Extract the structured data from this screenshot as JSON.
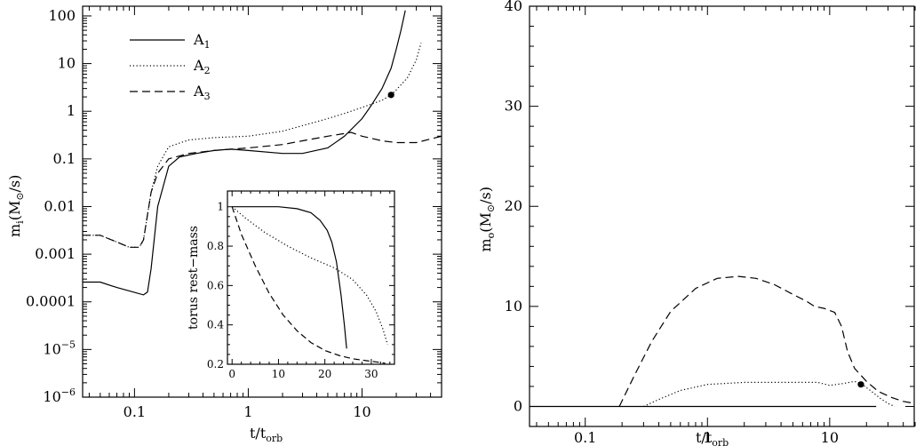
{
  "chart_data": [
    {
      "type": "line",
      "xscale": "log",
      "yscale": "log",
      "xlim": [
        0.035,
        50
      ],
      "ylim": [
        1e-06,
        160
      ],
      "xlabel": "t/t",
      "xlabel_sub": "orb",
      "ylabel": "m",
      "ylabel_sub": "i",
      "ylabel_units": "(M",
      "ylabel_units_sub": "⊙",
      "ylabel_units_tail": "/s)",
      "xticks": [
        {
          "v": 0.1,
          "label": "0.1"
        },
        {
          "v": 1,
          "label": "1"
        },
        {
          "v": 10,
          "label": "10"
        }
      ],
      "yticks": [
        {
          "v": 100,
          "label": "100"
        },
        {
          "v": 10,
          "label": "10"
        },
        {
          "v": 1,
          "label": "1"
        },
        {
          "v": 0.1,
          "label": "0.1"
        },
        {
          "v": 0.01,
          "label": "0.01"
        },
        {
          "v": 0.001,
          "label": "0.001"
        },
        {
          "v": 0.0001,
          "label": "0.0001"
        },
        {
          "v": 1e-05,
          "label": "10",
          "sup": "−5"
        },
        {
          "v": 1e-06,
          "label": "10",
          "sup": "−6"
        }
      ],
      "legend": [
        {
          "name": "A",
          "sub": "1",
          "dash": "solid"
        },
        {
          "name": "A",
          "sub": "2",
          "dash": "dotted"
        },
        {
          "name": "A",
          "sub": "3",
          "dash": "dashed"
        }
      ],
      "series": [
        {
          "name": "A1",
          "dash": "solid",
          "x": [
            0.035,
            0.05,
            0.07,
            0.09,
            0.12,
            0.13,
            0.14,
            0.16,
            0.2,
            0.25,
            0.35,
            0.5,
            0.7,
            1,
            2,
            3,
            5,
            7,
            10,
            12,
            15,
            18,
            20,
            22,
            24
          ],
          "y": [
            0.00026,
            0.00026,
            0.0002,
            0.00017,
            0.00014,
            0.00016,
            0.0005,
            0.01,
            0.07,
            0.11,
            0.13,
            0.15,
            0.16,
            0.15,
            0.13,
            0.13,
            0.17,
            0.3,
            0.7,
            1.3,
            3,
            8,
            20,
            50,
            130
          ]
        },
        {
          "name": "A2",
          "dash": "dotted",
          "x": [
            0.035,
            0.05,
            0.07,
            0.09,
            0.11,
            0.12,
            0.14,
            0.16,
            0.2,
            0.3,
            0.5,
            1,
            2,
            3,
            5,
            7,
            10,
            15,
            18,
            20,
            25,
            30,
            33
          ],
          "y": [
            0.0025,
            0.0025,
            0.0018,
            0.0014,
            0.0014,
            0.002,
            0.02,
            0.07,
            0.18,
            0.25,
            0.28,
            0.3,
            0.38,
            0.5,
            0.7,
            0.9,
            1.2,
            1.7,
            2.2,
            2.8,
            5,
            12,
            27
          ]
        },
        {
          "name": "A3",
          "dash": "dashed",
          "x": [
            0.035,
            0.05,
            0.07,
            0.09,
            0.11,
            0.12,
            0.14,
            0.16,
            0.2,
            0.3,
            0.5,
            1,
            2,
            3,
            5,
            7,
            8,
            10,
            15,
            20,
            30,
            50
          ],
          "y": [
            0.0025,
            0.0025,
            0.0018,
            0.0014,
            0.0014,
            0.002,
            0.02,
            0.05,
            0.1,
            0.13,
            0.15,
            0.17,
            0.2,
            0.24,
            0.3,
            0.34,
            0.36,
            0.3,
            0.24,
            0.22,
            0.22,
            0.3
          ]
        }
      ],
      "markers": [
        {
          "x": 18,
          "y": 2.2
        }
      ],
      "inset": {
        "type": "line",
        "xlim": [
          -1,
          35
        ],
        "ylim": [
          0.2,
          1.08
        ],
        "ylabel": "torus rest−mass",
        "xticks": [
          {
            "v": 0,
            "label": "0"
          },
          {
            "v": 10,
            "label": "10"
          },
          {
            "v": 20,
            "label": "20"
          },
          {
            "v": 30,
            "label": "30"
          }
        ],
        "yticks": [
          {
            "v": 0.2,
            "label": "0.2"
          },
          {
            "v": 0.4,
            "label": "0.4"
          },
          {
            "v": 0.6,
            "label": "0.6"
          },
          {
            "v": 0.8,
            "label": "0.8"
          },
          {
            "v": 1.0,
            "label": "1"
          }
        ],
        "series": [
          {
            "name": "A1",
            "dash": "solid",
            "x": [
              0,
              2,
              5,
              10,
              14,
              17,
              19,
              20.5,
              21.5,
              22.5,
              23.5,
              24.2,
              24.6,
              24.7
            ],
            "y": [
              1.0,
              1.0,
              1.0,
              1.0,
              0.99,
              0.97,
              0.93,
              0.88,
              0.82,
              0.72,
              0.55,
              0.4,
              0.3,
              0.28
            ]
          },
          {
            "name": "A2",
            "dash": "dotted",
            "x": [
              0,
              3,
              7,
              12,
              17,
              22,
              26,
              29,
              31,
              32.5,
              33.5
            ],
            "y": [
              1.0,
              0.94,
              0.87,
              0.8,
              0.74,
              0.69,
              0.63,
              0.55,
              0.47,
              0.38,
              0.3
            ]
          },
          {
            "name": "A3",
            "dash": "dashed",
            "x": [
              0,
              2,
              5,
              8,
              11,
              14,
              17,
              20,
              23,
              26,
              29,
              31,
              33
            ],
            "y": [
              1.0,
              0.86,
              0.7,
              0.56,
              0.45,
              0.37,
              0.31,
              0.27,
              0.245,
              0.228,
              0.218,
              0.212,
              0.205
            ]
          }
        ]
      }
    },
    {
      "type": "line",
      "xscale": "log",
      "yscale": "linear",
      "xlim": [
        0.035,
        50
      ],
      "ylim": [
        -2,
        40
      ],
      "xlabel": "t/t",
      "xlabel_sub": "orb",
      "ylabel": "m",
      "ylabel_sub": "o",
      "ylabel_units": "(M",
      "ylabel_units_sub": "⊙",
      "ylabel_units_tail": "/s)",
      "xticks": [
        {
          "v": 0.1,
          "label": "0.1"
        },
        {
          "v": 1,
          "label": "1"
        },
        {
          "v": 10,
          "label": "10"
        }
      ],
      "yticks": [
        {
          "v": 0,
          "label": "0"
        },
        {
          "v": 10,
          "label": "10"
        },
        {
          "v": 20,
          "label": "20"
        },
        {
          "v": 30,
          "label": "30"
        },
        {
          "v": 40,
          "label": "40"
        }
      ],
      "series": [
        {
          "name": "A1",
          "dash": "solid",
          "x": [
            0.035,
            24
          ],
          "y": [
            0,
            0
          ]
        },
        {
          "name": "A2",
          "dash": "dotted",
          "x": [
            0.3,
            0.4,
            0.6,
            1,
            2,
            4,
            8,
            10,
            13,
            16,
            18,
            22,
            26,
            30,
            34
          ],
          "y": [
            0,
            0.7,
            1.6,
            2.2,
            2.4,
            2.4,
            2.4,
            2.1,
            2.3,
            2.5,
            2.3,
            1.5,
            0.8,
            0.3,
            0
          ]
        },
        {
          "name": "A3",
          "dash": "dashed",
          "x": [
            0.19,
            0.25,
            0.35,
            0.5,
            0.8,
            1.2,
            1.8,
            2.5,
            3.5,
            5,
            6.5,
            7.5,
            9,
            11,
            12.5,
            14,
            16,
            20,
            25,
            32,
            40,
            50
          ],
          "y": [
            0,
            3,
            6.5,
            9.5,
            11.8,
            12.8,
            13.0,
            12.8,
            12.2,
            11.2,
            10.5,
            10.0,
            9.8,
            9.4,
            8.0,
            5.5,
            3.8,
            2.5,
            1.5,
            0.9,
            0.5,
            0.3
          ]
        }
      ],
      "markers": [
        {
          "x": 18,
          "y": 2.2
        }
      ]
    }
  ]
}
